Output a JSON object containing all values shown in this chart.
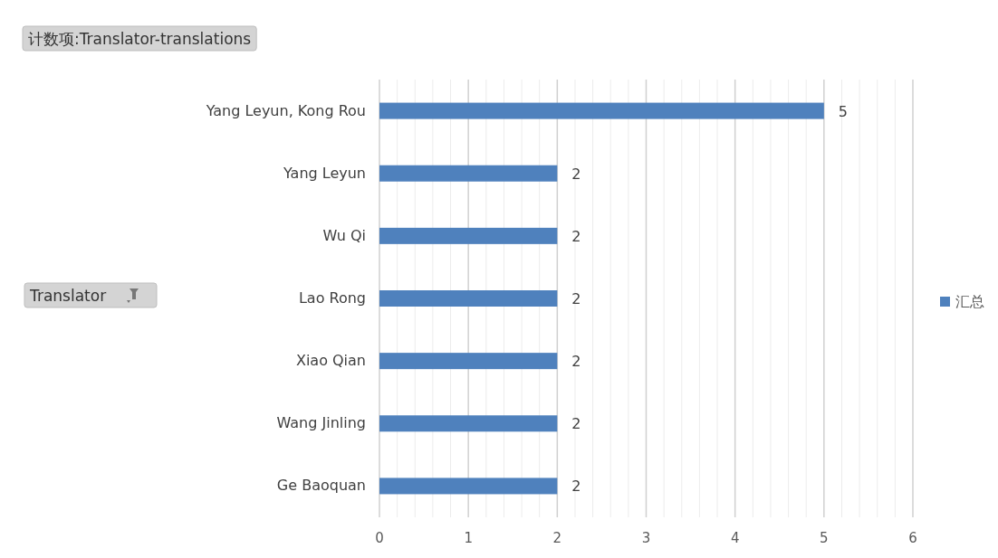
{
  "chart_data": {
    "type": "bar",
    "orientation": "horizontal",
    "title": "计数项:Translator-translations",
    "annotations": [
      "Translator"
    ],
    "categories": [
      "Yang Leyun, Kong Rou",
      "Yang Leyun",
      "Wu Qi",
      "Lao Rong",
      "Xiao Qian",
      "Wang Jinling",
      "Ge Baoquan"
    ],
    "series": [
      {
        "name": "汇总",
        "color": "#4f81bd",
        "values": [
          5,
          2,
          2,
          2,
          2,
          2,
          2
        ]
      }
    ],
    "xlim": [
      0,
      6
    ],
    "xticks": [
      0,
      {
        "value": 0.2,
        "label": null
      },
      {
        "value": 0.4,
        "label": null
      },
      {
        "value": 0.6,
        "label": null
      },
      {
        "value": 0.8,
        "label": null
      },
      1,
      {
        "value": 1.2,
        "label": null
      },
      {
        "value": 1.4,
        "label": null
      },
      {
        "value": 1.6,
        "label": null
      },
      {
        "value": 1.8,
        "label": null
      },
      2,
      {
        "value": 2.2,
        "label": null
      },
      {
        "value": 2.4,
        "label": null
      },
      {
        "value": 2.6,
        "label": null
      },
      {
        "value": 2.8,
        "label": null
      },
      3,
      {
        "value": 3.2,
        "label": null
      },
      {
        "value": 3.4,
        "label": null
      },
      {
        "value": 3.6,
        "label": null
      },
      {
        "value": 3.8,
        "label": null
      },
      4,
      {
        "value": 4.2,
        "label": null
      },
      {
        "value": 4.4,
        "label": null
      },
      {
        "value": 4.6,
        "label": null
      },
      {
        "value": 4.8,
        "label": null
      },
      5,
      {
        "value": 5.2,
        "label": null
      },
      {
        "value": 5.4,
        "label": null
      },
      {
        "value": 5.6,
        "label": null
      },
      {
        "value": 5.8,
        "label": null
      },
      6
    ],
    "grid": "x",
    "legend": "right",
    "data_labels": true
  }
}
